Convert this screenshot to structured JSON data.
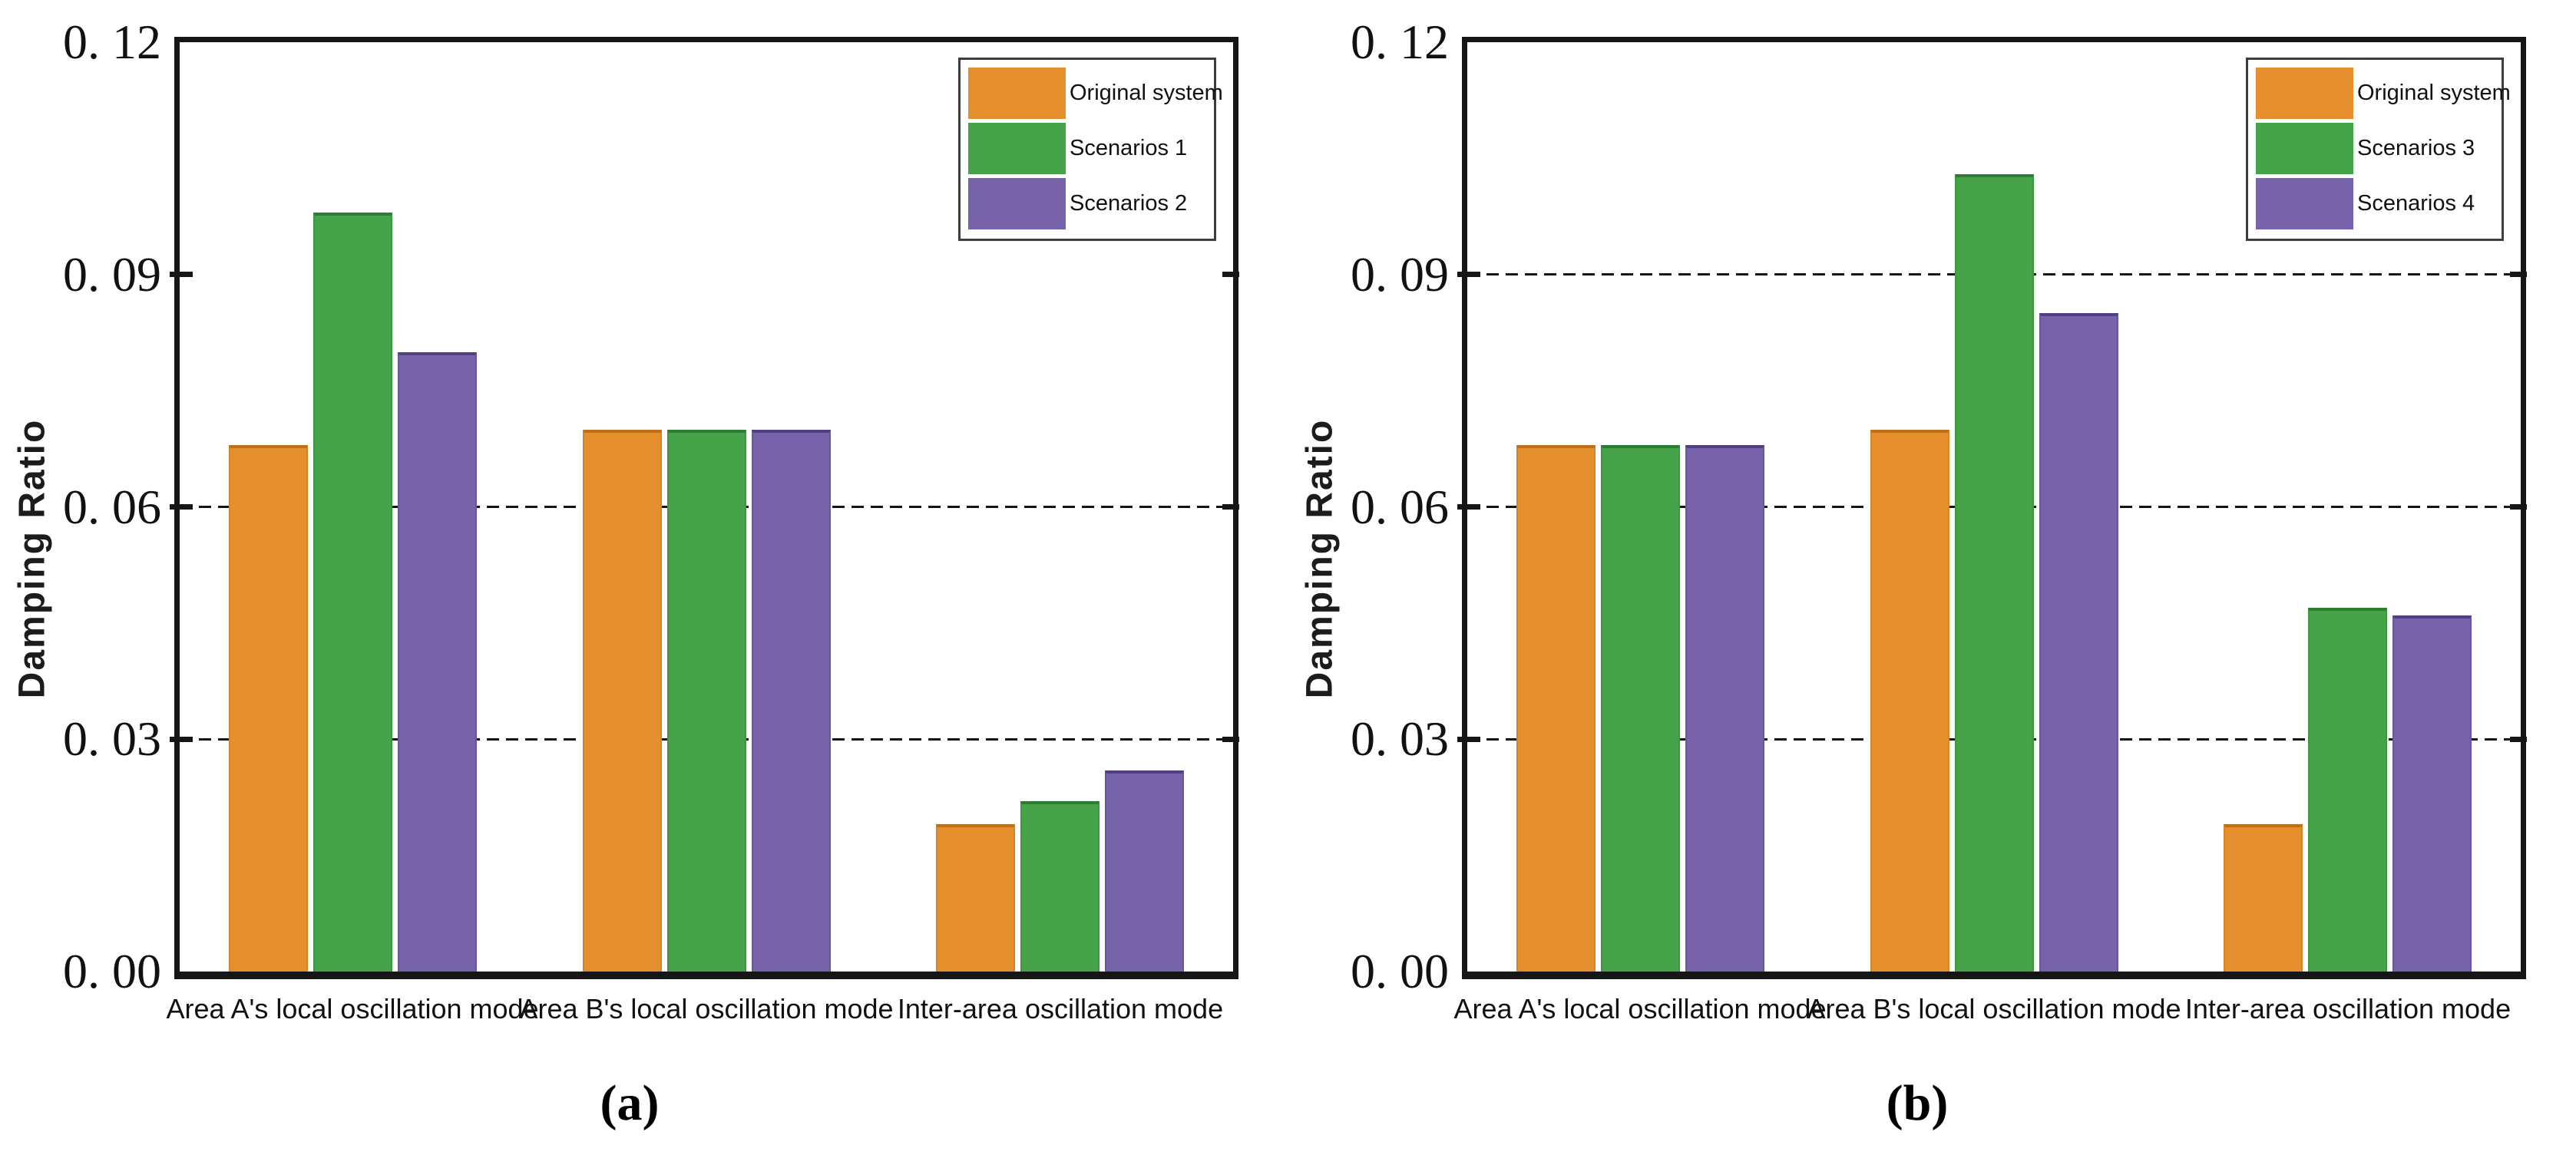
{
  "figure": {
    "background": "#ffffff",
    "axis_color": "#161616",
    "grid_color": "#151515"
  },
  "chart_data": [
    {
      "id": "a",
      "type": "bar",
      "caption": "(a)",
      "ylabel": "Damping Ratio",
      "xlabel": "",
      "ylim": [
        0,
        0.12
      ],
      "ytick_values": [
        0,
        0.03,
        0.06,
        0.09,
        0.12
      ],
      "ytick_labels": [
        "0. 00",
        "0. 03",
        "0. 06",
        "0. 09",
        "0. 12"
      ],
      "gridline_values": [
        0.03,
        0.06
      ],
      "grid_style": "dashed",
      "legend_position": "top-right",
      "categories": [
        "Area A's local oscillation mode",
        "Area B's local oscillation mode",
        "Inter-area oscillation mode"
      ],
      "series": [
        {
          "name": "Original system",
          "color": "#E58F2E",
          "edge": "#BD701C",
          "values": [
            0.068,
            0.07,
            0.019
          ]
        },
        {
          "name": "Scenarios 1",
          "color": "#45A449",
          "edge": "#2C7D31",
          "values": [
            0.098,
            0.07,
            0.022
          ]
        },
        {
          "name": "Scenarios 2",
          "color": "#7663A9",
          "edge": "#52407E",
          "values": [
            0.08,
            0.07,
            0.026
          ]
        }
      ]
    },
    {
      "id": "b",
      "type": "bar",
      "caption": "(b)",
      "ylabel": "Damping Ratio",
      "xlabel": "",
      "ylim": [
        0,
        0.12
      ],
      "ytick_values": [
        0,
        0.03,
        0.06,
        0.09,
        0.12
      ],
      "ytick_labels": [
        "0. 00",
        "0. 03",
        "0. 06",
        "0. 09",
        "0. 12"
      ],
      "gridline_values": [
        0.03,
        0.06,
        0.09
      ],
      "grid_style": "dashed",
      "legend_position": "top-right",
      "categories": [
        "Area A's local oscillation mode",
        "Area B's local oscillation mode",
        "Inter-area oscillation mode"
      ],
      "series": [
        {
          "name": "Original system",
          "color": "#E58F2E",
          "edge": "#BD701C",
          "values": [
            0.068,
            0.07,
            0.019
          ]
        },
        {
          "name": "Scenarios 3",
          "color": "#45A449",
          "edge": "#2C7D31",
          "values": [
            0.068,
            0.103,
            0.047
          ]
        },
        {
          "name": "Scenarios 4",
          "color": "#7663A9",
          "edge": "#52407E",
          "values": [
            0.068,
            0.085,
            0.046
          ]
        }
      ]
    }
  ]
}
